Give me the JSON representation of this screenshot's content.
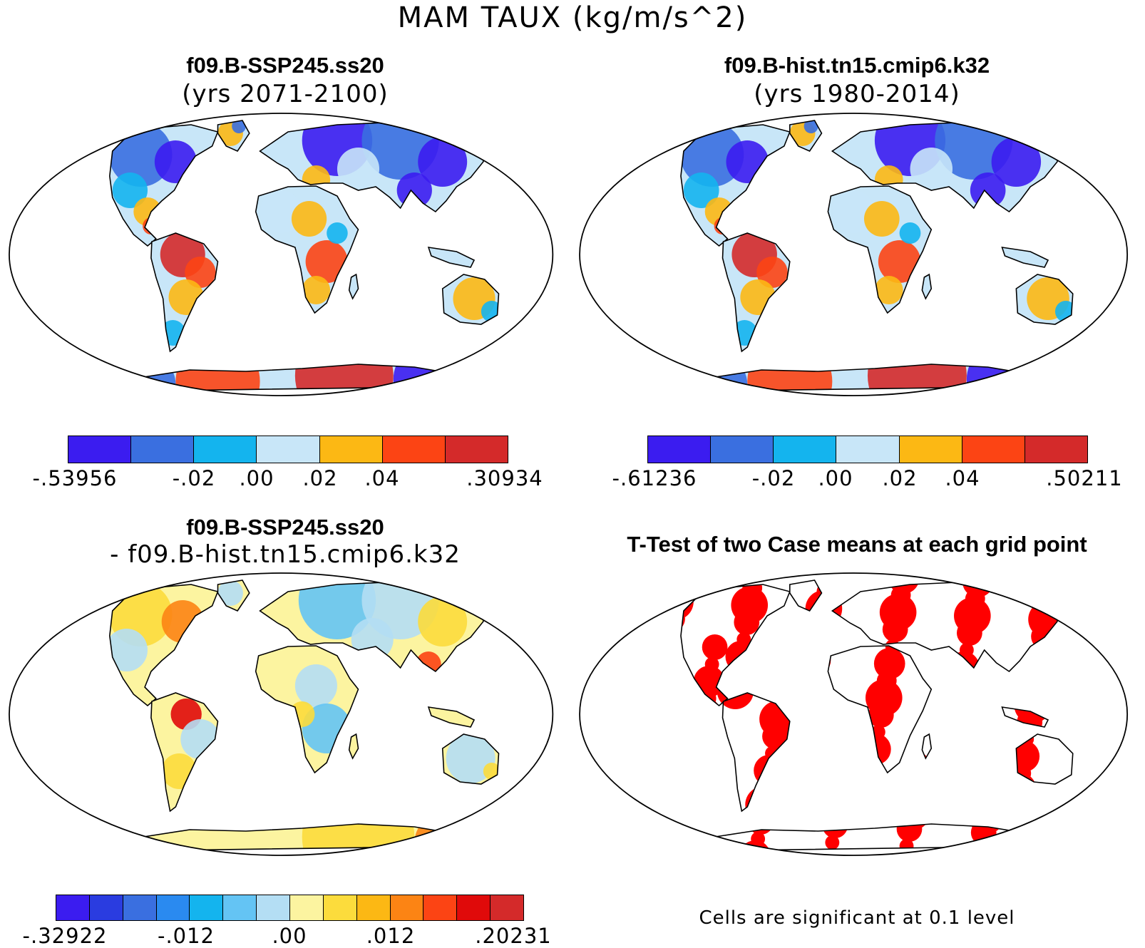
{
  "figure": {
    "title": "MAM TAUX (kg/m/s^2)"
  },
  "panels": [
    {
      "id": "case1",
      "name": "f09.B-SSP245.ss20",
      "subtitle": "(yrs 2071-2100)",
      "colorbar": {
        "colors": [
          "#3b1cf0",
          "#3a6fe0",
          "#14b4ee",
          "#c8e6f8",
          "#fcb814",
          "#fc4414",
          "#d42a2a"
        ],
        "tick_labels": [
          "-.53956",
          "-.02",
          ".00",
          ".02",
          ".04",
          ".30934"
        ]
      }
    },
    {
      "id": "case2",
      "name": "f09.B-hist.tn15.cmip6.k32",
      "subtitle": "(yrs 1980-2014)",
      "colorbar": {
        "colors": [
          "#3b1cf0",
          "#3a6fe0",
          "#14b4ee",
          "#c8e6f8",
          "#fcb814",
          "#fc4414",
          "#d42a2a"
        ],
        "tick_labels": [
          "-.61236",
          "-.02",
          ".00",
          ".02",
          ".04",
          ".50211"
        ]
      }
    },
    {
      "id": "diff",
      "name": "f09.B-SSP245.ss20",
      "subtitle": "- f09.B-hist.tn15.cmip6.k32",
      "colorbar": {
        "colors": [
          "#3b1cf0",
          "#2a3ce0",
          "#3a6fe0",
          "#2a8af0",
          "#14b4ee",
          "#64c4f4",
          "#b4def4",
          "#fcf4a0",
          "#fcdc3c",
          "#fcb814",
          "#fc8414",
          "#fc4414",
          "#e00a0a",
          "#d42a2a"
        ],
        "tick_labels": [
          "-.32922",
          "-.012",
          ".00",
          ".012",
          ".20231"
        ]
      }
    },
    {
      "id": "ttest",
      "title": "T-Test of two Case means at each grid point",
      "note": "Cells are significant at 0.1 level",
      "significant_color": "#ff0000"
    }
  ]
}
